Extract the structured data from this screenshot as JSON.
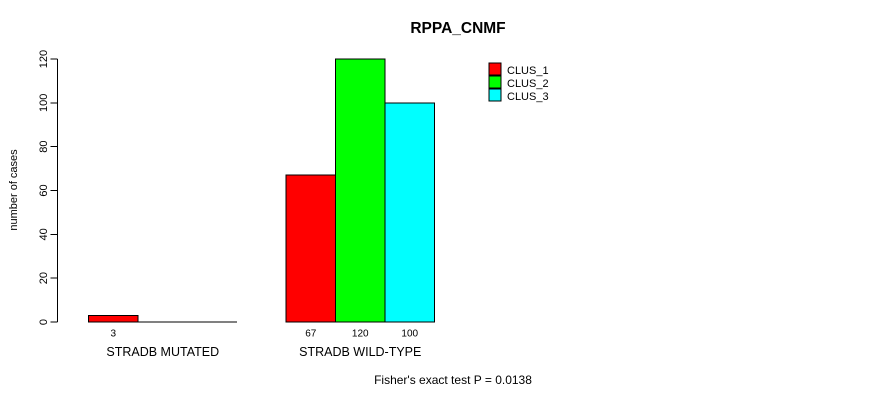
{
  "chart_data": {
    "type": "bar",
    "title": "RPPA_CNMF",
    "xlabel": "",
    "ylabel": "number of cases",
    "categories": [
      "STRADB MUTATED",
      "STRADB WILD-TYPE"
    ],
    "series": [
      {
        "name": "CLUS_1",
        "color": "#ff0000",
        "values": [
          3,
          67
        ]
      },
      {
        "name": "CLUS_2",
        "color": "#00ff00",
        "values": [
          0,
          120
        ]
      },
      {
        "name": "CLUS_3",
        "color": "#00ffff",
        "values": [
          0,
          100
        ]
      }
    ],
    "ylim": [
      0,
      120
    ],
    "yticks": [
      0,
      20,
      40,
      60,
      80,
      100,
      120
    ],
    "grid": false,
    "legend_position": "top-right",
    "visible_bar_labels": [
      "3",
      "67",
      "120",
      "100"
    ],
    "annotation": "Fisher's exact test P = 0.0138"
  }
}
